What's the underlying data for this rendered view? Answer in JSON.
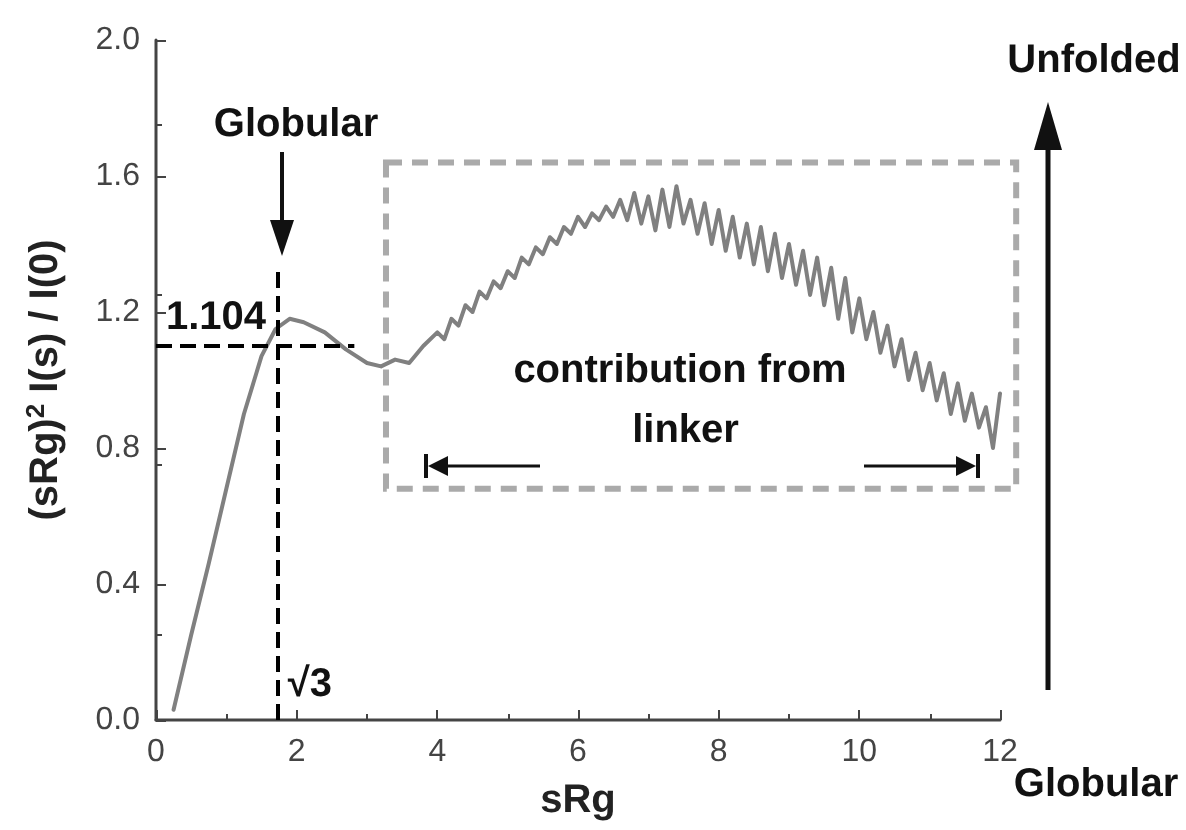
{
  "chart_data": {
    "type": "line",
    "xlabel": "sRg",
    "ylabel": "(sRg)$^{2}$ I(s) / I(0)",
    "x": [
      0.25,
      0.5,
      0.75,
      1.0,
      1.25,
      1.5,
      1.7,
      1.9,
      2.1,
      2.4,
      2.7,
      3.0,
      3.2,
      3.4,
      3.6,
      3.8,
      4.0,
      4.1,
      4.2,
      4.3,
      4.4,
      4.5,
      4.6,
      4.7,
      4.8,
      4.9,
      5.0,
      5.1,
      5.2,
      5.3,
      5.4,
      5.5,
      5.6,
      5.7,
      5.8,
      5.9,
      6.0,
      6.1,
      6.2,
      6.3,
      6.4,
      6.5,
      6.6,
      6.7,
      6.8,
      6.9,
      7.0,
      7.1,
      7.2,
      7.3,
      7.4,
      7.5,
      7.6,
      7.7,
      7.8,
      7.9,
      8.0,
      8.1,
      8.2,
      8.3,
      8.4,
      8.5,
      8.6,
      8.7,
      8.8,
      8.9,
      9.0,
      9.1,
      9.2,
      9.3,
      9.4,
      9.5,
      9.6,
      9.7,
      9.8,
      9.9,
      10.0,
      10.1,
      10.2,
      10.3,
      10.4,
      10.5,
      10.6,
      10.7,
      10.8,
      10.9,
      11.0,
      11.1,
      11.2,
      11.3,
      11.4,
      11.5,
      11.6,
      11.7,
      11.8,
      11.9,
      12.0
    ],
    "series": [
      {
        "color": "#808080",
        "values": [
          0.03,
          0.25,
          0.46,
          0.68,
          0.9,
          1.07,
          1.15,
          1.18,
          1.17,
          1.14,
          1.09,
          1.05,
          1.04,
          1.06,
          1.05,
          1.1,
          1.14,
          1.12,
          1.18,
          1.16,
          1.22,
          1.2,
          1.26,
          1.24,
          1.29,
          1.27,
          1.32,
          1.3,
          1.36,
          1.34,
          1.39,
          1.37,
          1.42,
          1.4,
          1.45,
          1.43,
          1.48,
          1.45,
          1.49,
          1.47,
          1.51,
          1.48,
          1.53,
          1.47,
          1.55,
          1.46,
          1.54,
          1.44,
          1.56,
          1.45,
          1.57,
          1.46,
          1.53,
          1.43,
          1.52,
          1.4,
          1.5,
          1.38,
          1.48,
          1.36,
          1.46,
          1.34,
          1.45,
          1.32,
          1.43,
          1.3,
          1.4,
          1.28,
          1.38,
          1.25,
          1.36,
          1.22,
          1.33,
          1.18,
          1.3,
          1.14,
          1.24,
          1.12,
          1.2,
          1.08,
          1.16,
          1.04,
          1.12,
          1.0,
          1.08,
          0.97,
          1.05,
          0.94,
          1.02,
          0.9,
          0.99,
          0.88,
          0.96,
          0.86,
          0.92,
          0.8,
          0.96
        ]
      }
    ],
    "xlim": [
      0,
      12
    ],
    "xticks": [
      0,
      2,
      4,
      6,
      8,
      10,
      12
    ],
    "ylim": [
      0,
      2
    ],
    "yticks": [
      {
        "value": 0,
        "label": "0.0"
      },
      0.4,
      0.8,
      1.2,
      1.6,
      {
        "value": 2,
        "label": "2.0"
      }
    ],
    "grid": false,
    "marker": "none",
    "line_style": "solid",
    "ref_lines": [
      {
        "axis": "y",
        "value": 1.104,
        "label": "1.104",
        "color": "#000000",
        "line_style": "dashed"
      },
      {
        "axis": "x",
        "value": 1.732,
        "label": "√3",
        "color": "#000000",
        "line_style": "dashed"
      }
    ],
    "annotations": [
      "Globular",
      "contribution from linker",
      "Unfolded",
      "Globular"
    ]
  }
}
